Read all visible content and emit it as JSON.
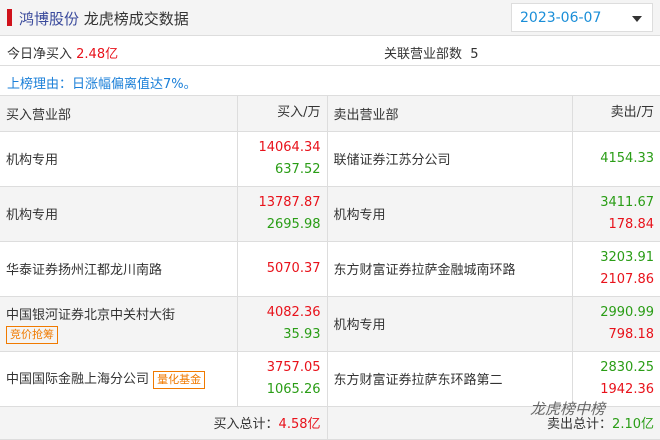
{
  "header": {
    "stock": "鸿博股份",
    "title": "龙虎榜成交数据",
    "date": "2023-06-07"
  },
  "summary": {
    "net_buy_label": "今日净买入",
    "net_buy_value": "2.48亿",
    "related_label": "关联营业部数",
    "related_value": "5"
  },
  "reason": "上榜理由：日涨幅偏离值达7%。",
  "columns": {
    "buy_dept": "买入营业部",
    "buy_amt": "买入/万",
    "sell_dept": "卖出营业部",
    "sell_amt": "卖出/万"
  },
  "rows": [
    {
      "buy": "机构专用",
      "buy_tag": "",
      "buy_v1": "14064.34",
      "buy_v2": "637.52",
      "sell": "联储证券江苏分公司",
      "sell_v1": "4154.33",
      "sell_v2": ""
    },
    {
      "buy": "机构专用",
      "buy_tag": "",
      "buy_v1": "13787.87",
      "buy_v2": "2695.98",
      "sell": "机构专用",
      "sell_v1": "3411.67",
      "sell_v2": "178.84"
    },
    {
      "buy": "华泰证券扬州江都龙川南路",
      "buy_tag": "",
      "buy_v1": "5070.37",
      "buy_v2": "",
      "sell": "东方财富证券拉萨金融城南环路",
      "sell_v1": "3203.91",
      "sell_v2": "2107.86"
    },
    {
      "buy": "中国银河证券北京中关村大街",
      "buy_tag": "竞价抢筹",
      "buy_v1": "4082.36",
      "buy_v2": "35.93",
      "sell": "机构专用",
      "sell_v1": "2990.99",
      "sell_v2": "798.18"
    },
    {
      "buy": "中国国际金融上海分公司",
      "buy_tag": "量化基金",
      "buy_v1": "3757.05",
      "buy_v2": "1065.26",
      "sell": "东方财富证券拉萨东环路第二",
      "sell_v1": "2830.25",
      "sell_v2": "1942.36"
    }
  ],
  "footer": {
    "buy_total_label": "买入总计：",
    "buy_total": "4.58亿",
    "sell_total_label": "卖出总计：",
    "sell_total": "2.10亿"
  },
  "watermark": "龙虎榜中榜",
  "colors": {
    "up": "#e8121b",
    "down": "#2a9d16",
    "accent": "#1a8ed8",
    "tag": "#f07a00"
  }
}
